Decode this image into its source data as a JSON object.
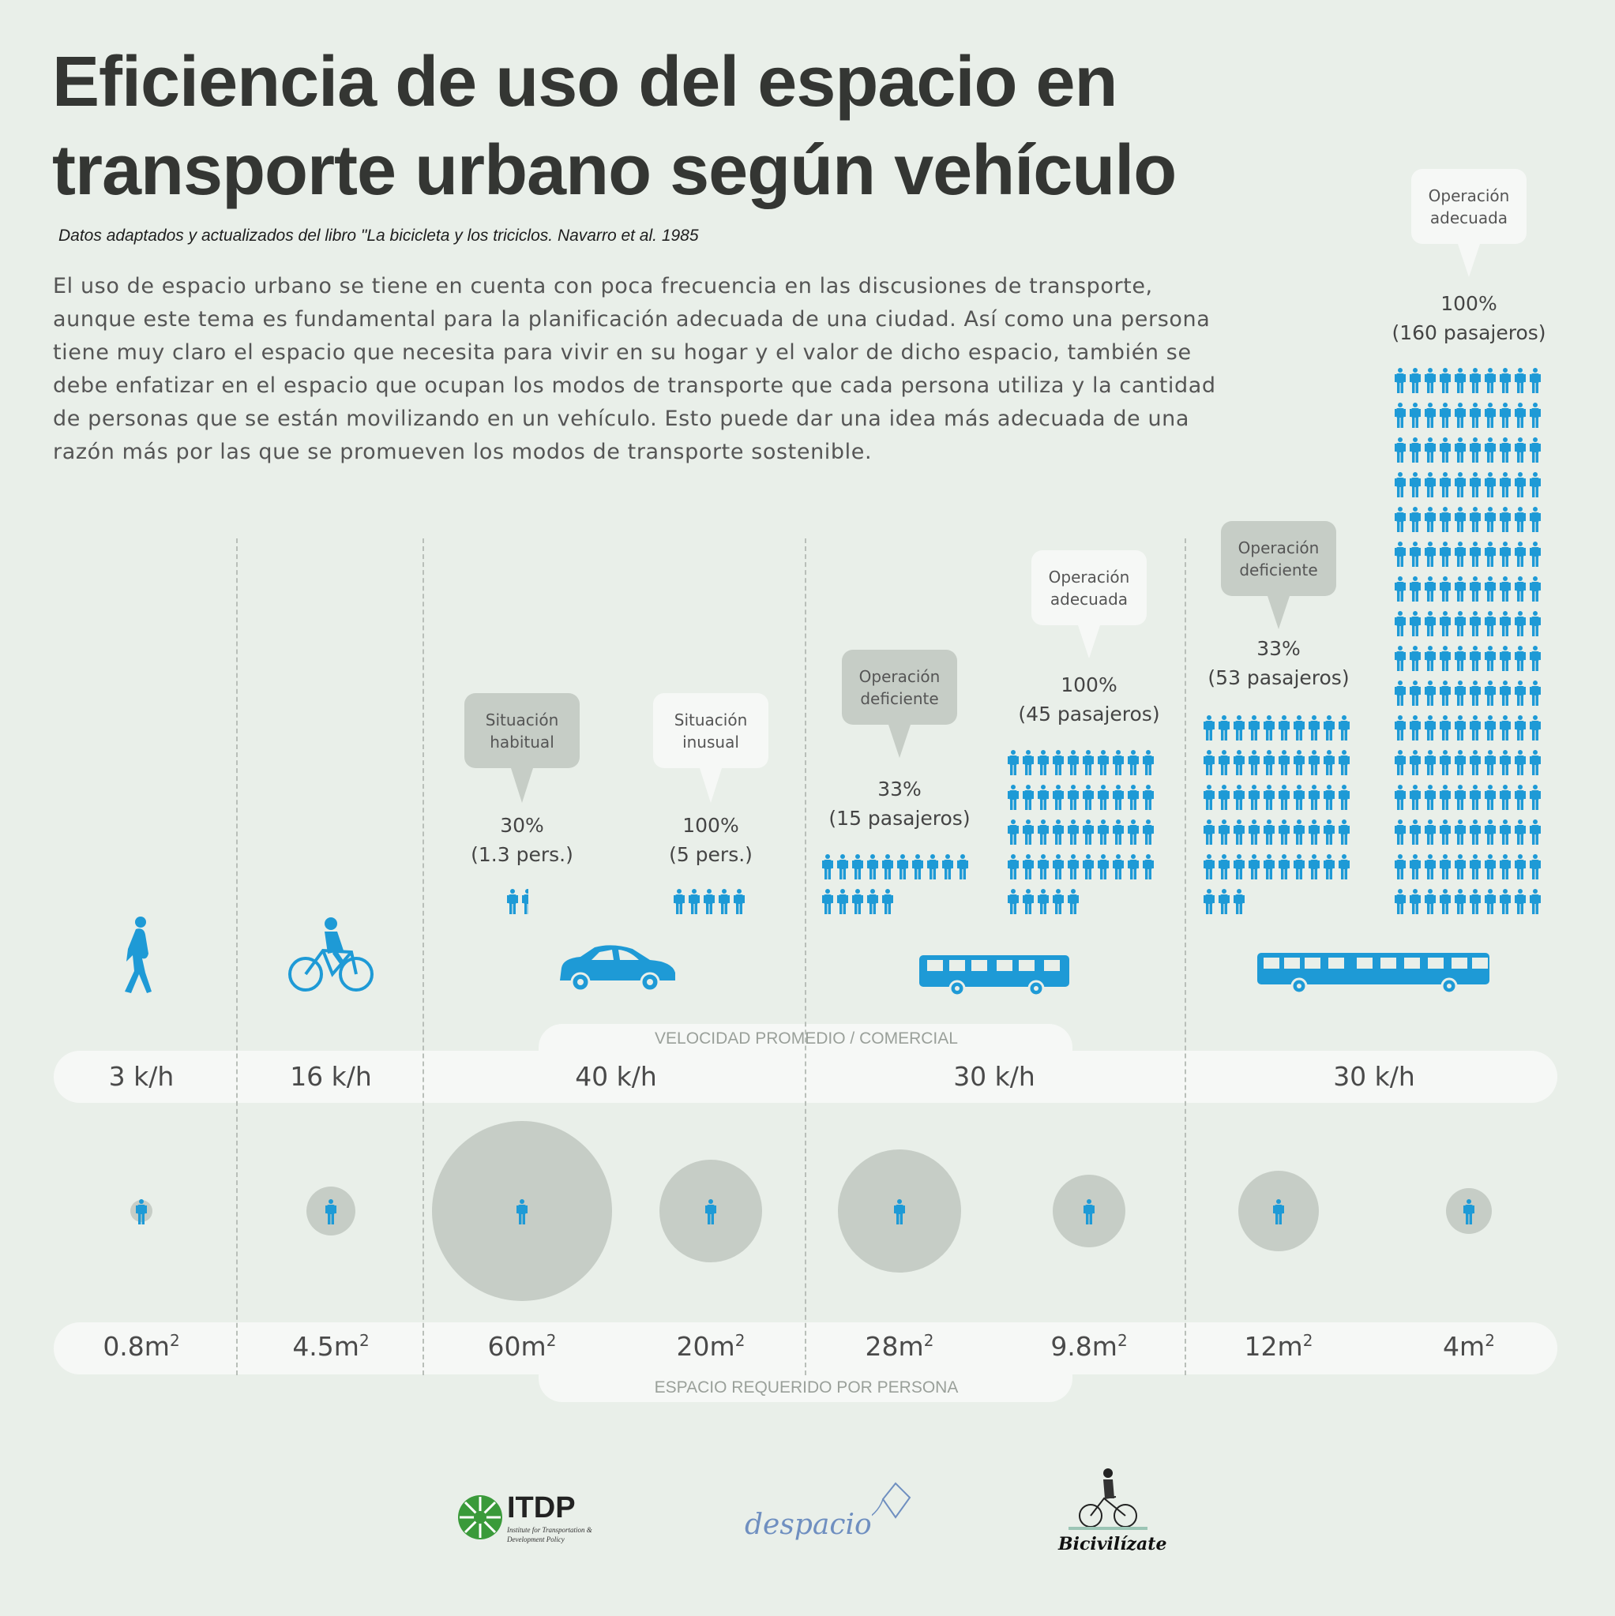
{
  "title": [
    "Eficiencia de uso del espacio en",
    "transporte urbano según vehículo"
  ],
  "subtitle": "Datos adaptados y actualizados del libro \"La bicicleta y los triciclos. Navarro et al. 1985",
  "intro": "El uso de espacio urbano se tiene en cuenta con poca frecuencia en las discusiones de transporte, aunque este tema es fundamental para la planificación adecuada de una ciudad. Así como una persona tiene muy claro el espacio que necesita para vivir en su hogar y el valor de dicho espacio, también se debe enfatizar en el espacio que ocupan los modos de transporte que cada persona utiliza y la cantidad de personas que se están movilizando en un vehículo. Esto puede dar una idea más adecuada de una razón más por las que se promueven los modos de transporte sostenible.",
  "colors": {
    "background": "#e9efe9",
    "person_blue": "#1e9ad6",
    "bubble_gray": "#c6cdc6",
    "bubble_white": "#f6f8f6",
    "space_circle": "#c6cdc6"
  },
  "speed_bar": {
    "label": "VELOCIDAD PROMEDIO / COMERCIAL",
    "values": [
      "3 k/h",
      "16 k/h",
      "40 k/h",
      "30 k/h",
      "30 k/h"
    ]
  },
  "space_bar": {
    "label": "ESPACIO REQUERIDO POR PERSONA",
    "unit": "m",
    "unit_exp": "2"
  },
  "vehicles": [
    {
      "icon": "pedestrian-icon",
      "vehicle": "walking"
    },
    {
      "icon": "bicycle-icon",
      "vehicle": "bicycle"
    },
    {
      "icon": "car-icon",
      "vehicle": "car"
    },
    {
      "icon": "bus-icon",
      "vehicle": "bus"
    },
    {
      "icon": "articulated-bus-icon",
      "vehicle": "articulated bus"
    }
  ],
  "columns": [
    {
      "space_m2": 0.8,
      "space_label": "0.8"
    },
    {
      "space_m2": 4.5,
      "space_label": "4.5"
    },
    {
      "space_m2": 60,
      "space_label": "60",
      "bubble": "Situación habitual",
      "bubble_tone": "gray",
      "pct": "30%",
      "count": "(1.3 pers.)",
      "persons": 1.3
    },
    {
      "space_m2": 20,
      "space_label": "20",
      "bubble": "Situación inusual",
      "bubble_tone": "white",
      "pct": "100%",
      "count": "(5 pers.)",
      "persons": 5
    },
    {
      "space_m2": 28,
      "space_label": "28",
      "bubble": "Operación deficiente",
      "bubble_tone": "gray",
      "pct": "33%",
      "count": "(15 pasajeros)",
      "persons": 15
    },
    {
      "space_m2": 9.8,
      "space_label": "9.8",
      "bubble": "Operación adecuada",
      "bubble_tone": "white",
      "pct": "100%",
      "count": "(45 pasajeros)",
      "persons": 45
    },
    {
      "space_m2": 12,
      "space_label": "12",
      "bubble": "Operación deficiente",
      "bubble_tone": "gray",
      "pct": "33%",
      "count": "(53 pasajeros)",
      "persons": 53
    },
    {
      "space_m2": 4,
      "space_label": "4",
      "bubble": "Operación adecuada",
      "bubble_tone": "white",
      "pct": "100%",
      "count": "(160 pasajeros)",
      "persons": 160
    }
  ],
  "logos": {
    "itdp": {
      "name": "ITDP",
      "tagline": "Institute for Transportation & Development Policy"
    },
    "despacio": {
      "name": "despacio"
    },
    "bicivilizate": {
      "name": "Bicivilízate"
    }
  }
}
